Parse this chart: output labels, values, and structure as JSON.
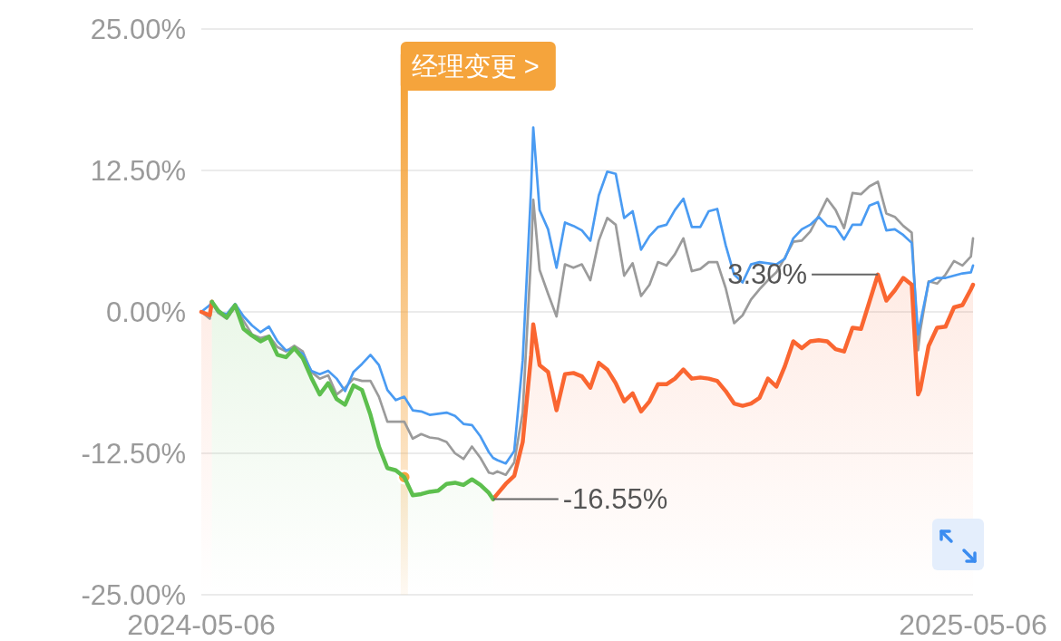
{
  "chart_data": {
    "type": "line",
    "x": [
      "2024-05-06",
      "2024-05-10",
      "2024-05-11",
      "2024-05-14",
      "2024-05-18",
      "2024-05-22",
      "2024-05-26",
      "2024-05-30",
      "2024-06-03",
      "2024-06-07",
      "2024-06-11",
      "2024-06-15",
      "2024-06-19",
      "2024-06-23",
      "2024-06-27",
      "2024-07-01",
      "2024-07-05",
      "2024-07-09",
      "2024-07-13",
      "2024-07-17",
      "2024-07-21",
      "2024-07-25",
      "2024-07-29",
      "2024-08-02",
      "2024-08-06",
      "2024-08-10",
      "2024-08-14",
      "2024-08-18",
      "2024-08-22",
      "2024-08-26",
      "2024-08-30",
      "2024-09-03",
      "2024-09-07",
      "2024-09-11",
      "2024-09-15",
      "2024-09-19",
      "2024-09-21",
      "2024-09-23",
      "2024-09-27",
      "2024-10-01",
      "2024-10-05",
      "2024-10-09",
      "2024-10-10",
      "2024-10-13",
      "2024-10-17",
      "2024-10-21",
      "2024-10-25",
      "2024-10-29",
      "2024-11-02",
      "2024-11-06",
      "2024-11-10",
      "2024-11-14",
      "2024-11-18",
      "2024-11-22",
      "2024-11-26",
      "2024-11-30",
      "2024-12-04",
      "2024-12-08",
      "2024-12-12",
      "2024-12-16",
      "2024-12-20",
      "2024-12-24",
      "2024-12-28",
      "2025-01-01",
      "2025-01-05",
      "2025-01-09",
      "2025-01-13",
      "2025-01-17",
      "2025-01-21",
      "2025-01-25",
      "2025-01-29",
      "2025-02-02",
      "2025-02-06",
      "2025-02-10",
      "2025-02-14",
      "2025-02-18",
      "2025-02-22",
      "2025-02-26",
      "2025-03-02",
      "2025-03-06",
      "2025-03-10",
      "2025-03-14",
      "2025-03-18",
      "2025-03-22",
      "2025-03-26",
      "2025-03-30",
      "2025-04-03",
      "2025-04-07",
      "2025-04-10",
      "2025-04-11",
      "2025-04-15",
      "2025-04-19",
      "2025-04-23",
      "2025-04-27",
      "2025-05-01",
      "2025-05-05",
      "2025-05-06"
    ],
    "xlim": [
      "2024-05-06",
      "2025-05-06"
    ],
    "xticks": [
      "2024-05-06",
      "2025-05-06"
    ],
    "ylim": [
      -25,
      25
    ],
    "yticks": [
      {
        "value": 25,
        "label": "25.00%"
      },
      {
        "value": 12.5,
        "label": "12.50%"
      },
      {
        "value": 0,
        "label": "0.00%"
      },
      {
        "value": -12.5,
        "label": "-12.50%"
      },
      {
        "value": -25,
        "label": "-25.00%"
      }
    ],
    "grid": "y",
    "series": [
      {
        "color": "#9b9b9b",
        "values": [
          0.0,
          -0.6,
          0.8,
          -0.1,
          -0.6,
          0.4,
          -0.8,
          -2.0,
          -2.3,
          -2.1,
          -3.1,
          -3.5,
          -3.0,
          -3.5,
          -5.3,
          -5.9,
          -5.6,
          -7.3,
          -6.7,
          -5.9,
          -6.1,
          -6.1,
          -7.5,
          -9.7,
          -9.7,
          -9.7,
          -11.2,
          -10.8,
          -11.1,
          -11.2,
          -11.5,
          -12.5,
          -13.0,
          -11.9,
          -12.9,
          -14.2,
          -14.3,
          -14.1,
          -14.4,
          -13.3,
          -8.9,
          5.1,
          9.9,
          3.7,
          1.6,
          -0.4,
          4.2,
          3.9,
          4.2,
          2.8,
          6.3,
          8.3,
          7.7,
          3.2,
          4.3,
          1.4,
          2.4,
          4.4,
          4.1,
          5.1,
          6.5,
          3.6,
          3.8,
          4.4,
          4.4,
          2.1,
          -1.0,
          -0.3,
          1.1,
          2.0,
          2.8,
          3.5,
          4.8,
          6.2,
          6.3,
          7.1,
          8.5,
          10.0,
          9.0,
          7.4,
          10.5,
          10.4,
          11.1,
          11.5,
          8.7,
          8.4,
          7.6,
          7.0,
          -3.4,
          -1.7,
          2.7,
          2.5,
          3.3,
          4.5,
          4.1,
          4.9,
          6.5
        ]
      },
      {
        "color": "#4a9bf2",
        "values": [
          0.0,
          0.6,
          0.9,
          0.0,
          -0.2,
          0.7,
          -0.4,
          -1.2,
          -1.8,
          -1.3,
          -2.6,
          -3.4,
          -3.3,
          -3.7,
          -5.2,
          -5.5,
          -5.2,
          -5.9,
          -7.0,
          -5.3,
          -4.6,
          -3.8,
          -4.7,
          -6.9,
          -7.8,
          -7.5,
          -8.7,
          -8.8,
          -9.1,
          -9.0,
          -8.9,
          -9.2,
          -9.9,
          -10.0,
          -11.0,
          -12.4,
          -12.9,
          -13.1,
          -13.4,
          -12.3,
          -4.3,
          11.0,
          16.3,
          9.0,
          7.3,
          3.9,
          7.9,
          7.6,
          7.2,
          6.3,
          10.3,
          12.4,
          12.2,
          8.3,
          8.9,
          5.5,
          6.7,
          7.5,
          7.7,
          9.0,
          10.0,
          7.5,
          7.5,
          8.9,
          9.1,
          5.9,
          3.3,
          2.6,
          4.2,
          4.4,
          4.3,
          4.2,
          4.7,
          6.5,
          7.3,
          7.7,
          8.4,
          7.6,
          7.5,
          6.4,
          7.7,
          7.7,
          9.4,
          9.7,
          7.2,
          7.3,
          6.8,
          6.1,
          -2.0,
          -1.0,
          2.6,
          3.0,
          3.0,
          3.2,
          3.4,
          3.5,
          4.1
        ]
      },
      {
        "color": "#fa6631",
        "values": [
          0.0,
          -0.3,
          0.9,
          null,
          null,
          null,
          null,
          null,
          null,
          null,
          null,
          null,
          null,
          null,
          null,
          null,
          null,
          null,
          null,
          null,
          null,
          null,
          null,
          null,
          null,
          null,
          null,
          null,
          null,
          null,
          null,
          null,
          null,
          null,
          null,
          null,
          -16.55,
          -16.1,
          -15.2,
          -14.5,
          -11.5,
          -3.8,
          -1.1,
          -4.7,
          -5.3,
          -8.7,
          -5.5,
          -5.4,
          -5.7,
          -6.7,
          -4.5,
          -5.1,
          -6.3,
          -7.9,
          -7.2,
          -8.8,
          -7.9,
          -6.4,
          -6.4,
          -5.9,
          -5.1,
          -5.9,
          -5.8,
          -5.9,
          -6.1,
          -7.0,
          -8.1,
          -8.3,
          -8.1,
          -7.6,
          -5.9,
          -6.6,
          -4.8,
          -2.6,
          -3.2,
          -2.6,
          -2.5,
          -2.6,
          -3.3,
          -3.5,
          -1.4,
          -1.5,
          0.9,
          3.3,
          1.0,
          1.9,
          3.0,
          2.4,
          -7.3,
          -6.9,
          -3.0,
          -1.4,
          -1.3,
          0.4,
          0.6,
          2.0,
          2.4
        ],
        "lower": [
          -25,
          -25,
          -25,
          null,
          null,
          null,
          null,
          null,
          null,
          null,
          null,
          null,
          null,
          null,
          null,
          null,
          null,
          null,
          null,
          null,
          null,
          null,
          null,
          null,
          null,
          null,
          null,
          null,
          null,
          null,
          null,
          null,
          null,
          null,
          null,
          null,
          -25,
          -25,
          -25,
          -25,
          -25,
          -25,
          -25,
          -25,
          -25,
          -25,
          -25,
          -25,
          -25,
          -25,
          -25,
          -25,
          -25,
          -25,
          -25,
          -25,
          -25,
          -25,
          -25,
          -25,
          -25,
          -25,
          -25,
          -25,
          -25,
          -25,
          -25,
          -25,
          -25,
          -25,
          -25,
          -25,
          -25,
          -25,
          -25,
          -25,
          -25,
          -25,
          -25,
          -25,
          -25,
          -25,
          -25,
          -25,
          -25,
          -25,
          -25,
          -25,
          -25,
          -25,
          -25,
          -25,
          -25,
          -25,
          -25,
          -25,
          -25
        ],
        "upper": [
          0.0,
          -0.3,
          0.9,
          null,
          null,
          null,
          null,
          null,
          null,
          null,
          null,
          null,
          null,
          null,
          null,
          null,
          null,
          null,
          null,
          null,
          null,
          null,
          null,
          null,
          null,
          null,
          null,
          null,
          null,
          null,
          null,
          null,
          null,
          null,
          null,
          null,
          -16.55,
          -16.1,
          -15.2,
          -14.5,
          -11.5,
          -3.8,
          -1.1,
          -4.7,
          -5.3,
          -8.7,
          -5.5,
          -5.4,
          -5.7,
          -6.7,
          -4.5,
          -5.1,
          -6.3,
          -7.9,
          -7.2,
          -8.8,
          -7.9,
          -6.4,
          -6.4,
          -5.9,
          -5.1,
          -5.9,
          -5.8,
          -5.9,
          -6.1,
          -7.0,
          -8.1,
          -8.3,
          -8.1,
          -7.6,
          -5.9,
          -6.6,
          -4.8,
          -2.6,
          -3.2,
          -2.6,
          -2.5,
          -2.6,
          -3.3,
          -3.5,
          -1.4,
          -1.5,
          0.9,
          3.3,
          1.0,
          1.9,
          3.0,
          2.4,
          -7.3,
          -6.9,
          -3.0,
          -1.4,
          -1.3,
          0.4,
          0.6,
          2.0,
          2.4
        ]
      },
      {
        "color": "#5dbf4e",
        "values": [
          null,
          null,
          0.9,
          0.1,
          -0.5,
          0.6,
          -1.5,
          -2.1,
          -2.6,
          -2.2,
          -3.8,
          -4.0,
          -3.2,
          -4.1,
          -5.8,
          -7.3,
          -6.3,
          -7.7,
          -8.2,
          -6.5,
          -6.9,
          -9.1,
          -11.9,
          -13.8,
          -14.0,
          -14.6,
          -16.2,
          -16.1,
          -15.9,
          -15.8,
          -15.2,
          -15.1,
          -15.3,
          -14.8,
          -15.3,
          -16.0,
          -16.55,
          null,
          null,
          null,
          null,
          null,
          null,
          null,
          null,
          null,
          null,
          null,
          null,
          null,
          null,
          null,
          null,
          null,
          null,
          null,
          null,
          null,
          null,
          null,
          null,
          null,
          null,
          null,
          null,
          null,
          null,
          null,
          null,
          null,
          null,
          null,
          null,
          null,
          null,
          null,
          null,
          null,
          null,
          null,
          null,
          null,
          null,
          null,
          null,
          null,
          null,
          null,
          null,
          null,
          null,
          null,
          null,
          null,
          null,
          null,
          null
        ],
        "lower": [
          null,
          null,
          -25,
          -25,
          -25,
          -25,
          -25,
          -25,
          -25,
          -25,
          -25,
          -25,
          -25,
          -25,
          -25,
          -25,
          -25,
          -25,
          -25,
          -25,
          -25,
          -25,
          -25,
          -25,
          -25,
          -25,
          -25,
          -25,
          -25,
          -25,
          -25,
          -25,
          -25,
          -25,
          -25,
          -25,
          -25,
          null,
          null,
          null,
          null,
          null,
          null,
          null,
          null,
          null,
          null,
          null,
          null,
          null,
          null,
          null,
          null,
          null,
          null,
          null,
          null,
          null,
          null,
          null,
          null,
          null,
          null,
          null,
          null,
          null,
          null,
          null,
          null,
          null,
          null,
          null,
          null,
          null,
          null,
          null,
          null,
          null,
          null,
          null,
          null,
          null,
          null,
          null,
          null,
          null,
          null,
          null,
          null,
          null,
          null,
          null,
          null,
          null,
          null,
          null,
          null
        ],
        "upper": [
          null,
          null,
          0.9,
          0.1,
          -0.5,
          0.6,
          -1.5,
          -2.1,
          -2.6,
          -2.2,
          -3.8,
          -4.0,
          -3.2,
          -4.1,
          -5.8,
          -7.3,
          -6.3,
          -7.7,
          -8.2,
          -6.5,
          -6.9,
          -9.1,
          -11.9,
          -13.8,
          -14.0,
          -14.6,
          -16.2,
          -16.1,
          -15.9,
          -15.8,
          -15.2,
          -15.1,
          -15.3,
          -14.8,
          -15.3,
          -16.0,
          -16.55,
          null,
          null,
          null,
          null,
          null,
          null,
          null,
          null,
          null,
          null,
          null,
          null,
          null,
          null,
          null,
          null,
          null,
          null,
          null,
          null,
          null,
          null,
          null,
          null,
          null,
          null,
          null,
          null,
          null,
          null,
          null,
          null,
          null,
          null,
          null,
          null,
          null,
          null,
          null,
          null,
          null,
          null,
          null,
          null,
          null,
          null,
          null,
          null,
          null,
          null,
          null,
          null,
          null,
          null,
          null,
          null,
          null,
          null,
          null,
          null
        ]
      }
    ],
    "annotations": [
      {
        "text": "-16.55%",
        "x": "2024-09-21",
        "y": -16.55
      },
      {
        "text": "3.30%",
        "x": "2025-03-22",
        "y": 3.3
      }
    ],
    "ref_lines": [
      {
        "axis": "x",
        "value": "2024-08-10",
        "label": "经理变更 >",
        "color": "#f5a43c"
      }
    ]
  }
}
